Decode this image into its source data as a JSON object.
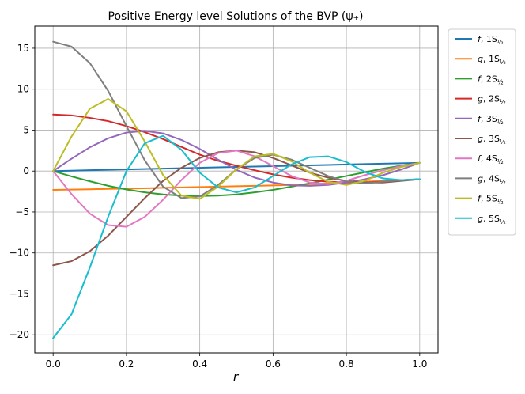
{
  "chart_data": {
    "type": "line",
    "title": "Positive Energy level Solutions of the BVP (ψ₊)",
    "xlabel": "r",
    "ylabel": "",
    "xlim": [
      -0.05,
      1.05
    ],
    "ylim": [
      -22.2,
      17.7
    ],
    "xticks": [
      0.0,
      0.2,
      0.4,
      0.6,
      0.8,
      1.0
    ],
    "xtick_labels": [
      "0.0",
      "0.2",
      "0.4",
      "0.6",
      "0.8",
      "1.0"
    ],
    "yticks": [
      -20,
      -15,
      -10,
      -5,
      0,
      5,
      10,
      15
    ],
    "ytick_labels": [
      "−20",
      "−15",
      "−10",
      "−5",
      "0",
      "5",
      "10",
      "15"
    ],
    "grid": true,
    "legend_position": "outside-right-top",
    "x": [
      0.0,
      0.05,
      0.1,
      0.15,
      0.2,
      0.25,
      0.3,
      0.35,
      0.4,
      0.45,
      0.5,
      0.55,
      0.6,
      0.65,
      0.7,
      0.75,
      0.8,
      0.85,
      0.9,
      0.95,
      1.0
    ],
    "series": [
      {
        "name": "f, 1S½",
        "label_main": "f, 1S",
        "color": "#1f77b4",
        "values": [
          0.0,
          0.05,
          0.1,
          0.15,
          0.2,
          0.25,
          0.3,
          0.35,
          0.4,
          0.45,
          0.5,
          0.55,
          0.6,
          0.65,
          0.7,
          0.75,
          0.8,
          0.85,
          0.9,
          0.95,
          1.0
        ]
      },
      {
        "name": "g, 1S½",
        "label_main": "g, 1S",
        "color": "#ff7f0e",
        "values": [
          -2.3,
          -2.26,
          -2.22,
          -2.18,
          -2.14,
          -2.1,
          -2.05,
          -2.0,
          -1.95,
          -1.9,
          -1.85,
          -1.8,
          -1.75,
          -1.7,
          -1.6,
          -1.5,
          -1.4,
          -1.3,
          -1.2,
          -1.1,
          -1.0
        ]
      },
      {
        "name": "f, 2S½",
        "label_main": "f, 2S",
        "color": "#2ca02c",
        "values": [
          0.0,
          -0.65,
          -1.25,
          -1.8,
          -2.25,
          -2.6,
          -2.85,
          -3.0,
          -3.05,
          -3.0,
          -2.85,
          -2.6,
          -2.3,
          -1.9,
          -1.5,
          -1.05,
          -0.6,
          -0.15,
          0.3,
          0.65,
          1.0
        ]
      },
      {
        "name": "g, 2S½",
        "label_main": "g, 2S",
        "color": "#d62728",
        "values": [
          6.9,
          6.8,
          6.5,
          6.1,
          5.5,
          4.75,
          3.9,
          2.95,
          2.0,
          1.25,
          0.65,
          0.1,
          -0.4,
          -0.8,
          -1.1,
          -1.3,
          -1.4,
          -1.4,
          -1.3,
          -1.15,
          -1.0
        ]
      },
      {
        "name": "f, 3S½",
        "label_main": "f, 3S",
        "color": "#9467bd",
        "values": [
          0.0,
          1.5,
          2.9,
          4.0,
          4.7,
          4.9,
          4.6,
          3.8,
          2.7,
          1.4,
          0.15,
          -0.8,
          -1.4,
          -1.75,
          -1.8,
          -1.7,
          -1.4,
          -1.0,
          -0.5,
          0.2,
          1.0
        ]
      },
      {
        "name": "g, 3S½",
        "label_main": "g, 3S",
        "color": "#8c564b",
        "values": [
          -11.5,
          -11.0,
          -9.8,
          -7.9,
          -5.6,
          -3.3,
          -1.2,
          0.4,
          1.6,
          2.3,
          2.5,
          2.3,
          1.6,
          0.7,
          -0.2,
          -0.8,
          -1.2,
          -1.4,
          -1.4,
          -1.2,
          -1.0
        ]
      },
      {
        "name": "f, 4S½",
        "label_main": "f, 4S",
        "color": "#e377c2",
        "values": [
          0.0,
          -2.8,
          -5.2,
          -6.6,
          -6.8,
          -5.6,
          -3.5,
          -1.1,
          1.0,
          2.2,
          2.5,
          1.8,
          0.6,
          -0.6,
          -1.4,
          -1.6,
          -1.2,
          -0.5,
          0.1,
          0.6,
          1.0
        ]
      },
      {
        "name": "g, 4S½",
        "label_main": "g, 4S",
        "color": "#7f7f7f",
        "values": [
          15.8,
          15.2,
          13.2,
          9.8,
          5.5,
          1.3,
          -1.9,
          -3.3,
          -3.1,
          -1.7,
          0.2,
          1.6,
          2.0,
          1.4,
          0.4,
          -0.6,
          -1.3,
          -1.5,
          -1.3,
          -1.1,
          -1.0
        ]
      },
      {
        "name": "f, 5S½",
        "label_main": "f, 5S",
        "color": "#bcbd22",
        "values": [
          0.0,
          4.2,
          7.6,
          8.8,
          7.3,
          3.6,
          -0.5,
          -3.0,
          -3.4,
          -1.9,
          0.2,
          1.8,
          2.1,
          1.2,
          -0.2,
          -1.3,
          -1.7,
          -1.2,
          -0.2,
          0.5,
          1.0
        ]
      },
      {
        "name": "g, 5S½",
        "label_main": "g, 5S",
        "color": "#17becf",
        "values": [
          -20.4,
          -17.5,
          -11.8,
          -5.6,
          0.0,
          3.4,
          4.3,
          2.6,
          -0.2,
          -2.0,
          -2.6,
          -2.0,
          -0.6,
          0.8,
          1.7,
          1.8,
          1.1,
          -0.1,
          -0.9,
          -1.1,
          -1.0
        ]
      }
    ],
    "legend_subscript": "½"
  }
}
